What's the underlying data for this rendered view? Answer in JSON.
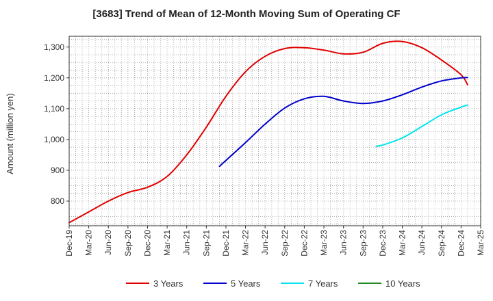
{
  "chart_data": {
    "type": "line",
    "title": "[3683]  Trend of Mean of 12-Month Moving Sum of Operating CF",
    "xlabel": "",
    "ylabel": "Amount (million yen)",
    "ylim": [
      720,
      1335
    ],
    "yticks": [
      800,
      900,
      1000,
      1100,
      1200,
      1300
    ],
    "ytick_labels": [
      "800",
      "900",
      "1,000",
      "1,100",
      "1,200",
      "1,300"
    ],
    "x_tick_labels": [
      "Dec-19",
      "Mar-20",
      "Jun-20",
      "Sep-20",
      "Dec-20",
      "Mar-21",
      "Jun-21",
      "Sep-21",
      "Dec-21",
      "Mar-22",
      "Jun-22",
      "Sep-22",
      "Dec-22",
      "Mar-23",
      "Jun-23",
      "Sep-23",
      "Dec-23",
      "Mar-24",
      "Jun-24",
      "Sep-24",
      "Dec-24",
      "Mar-25"
    ],
    "grid": true,
    "legend_position": "bottom",
    "series": [
      {
        "name": "3 Years",
        "color": "#e00000",
        "points": [
          [
            0,
            730
          ],
          [
            1,
            765
          ],
          [
            2,
            800
          ],
          [
            3,
            828
          ],
          [
            4,
            845
          ],
          [
            5,
            880
          ],
          [
            6,
            950
          ],
          [
            7,
            1040
          ],
          [
            8,
            1140
          ],
          [
            9,
            1220
          ],
          [
            10,
            1270
          ],
          [
            11,
            1295
          ],
          [
            12,
            1298
          ],
          [
            13,
            1290
          ],
          [
            14,
            1278
          ],
          [
            15,
            1283
          ],
          [
            16,
            1312
          ],
          [
            17,
            1318
          ],
          [
            18,
            1298
          ],
          [
            19,
            1258
          ],
          [
            20,
            1210
          ],
          [
            20.33,
            1178
          ]
        ]
      },
      {
        "name": "5 Years",
        "color": "#0000cc",
        "points": [
          [
            7.67,
            913
          ],
          [
            9,
            990
          ],
          [
            10,
            1050
          ],
          [
            11,
            1102
          ],
          [
            12,
            1132
          ],
          [
            13,
            1140
          ],
          [
            14,
            1125
          ],
          [
            15,
            1117
          ],
          [
            16,
            1125
          ],
          [
            17,
            1145
          ],
          [
            18,
            1170
          ],
          [
            19,
            1190
          ],
          [
            20,
            1200
          ],
          [
            20.33,
            1201
          ]
        ]
      },
      {
        "name": "7 Years",
        "color": "#00e5ee",
        "points": [
          [
            15.67,
            978
          ],
          [
            16,
            982
          ],
          [
            17,
            1005
          ],
          [
            18,
            1042
          ],
          [
            19,
            1080
          ],
          [
            20,
            1105
          ],
          [
            20.33,
            1112
          ]
        ]
      },
      {
        "name": "10 Years",
        "color": "#228b22",
        "points": []
      }
    ]
  }
}
